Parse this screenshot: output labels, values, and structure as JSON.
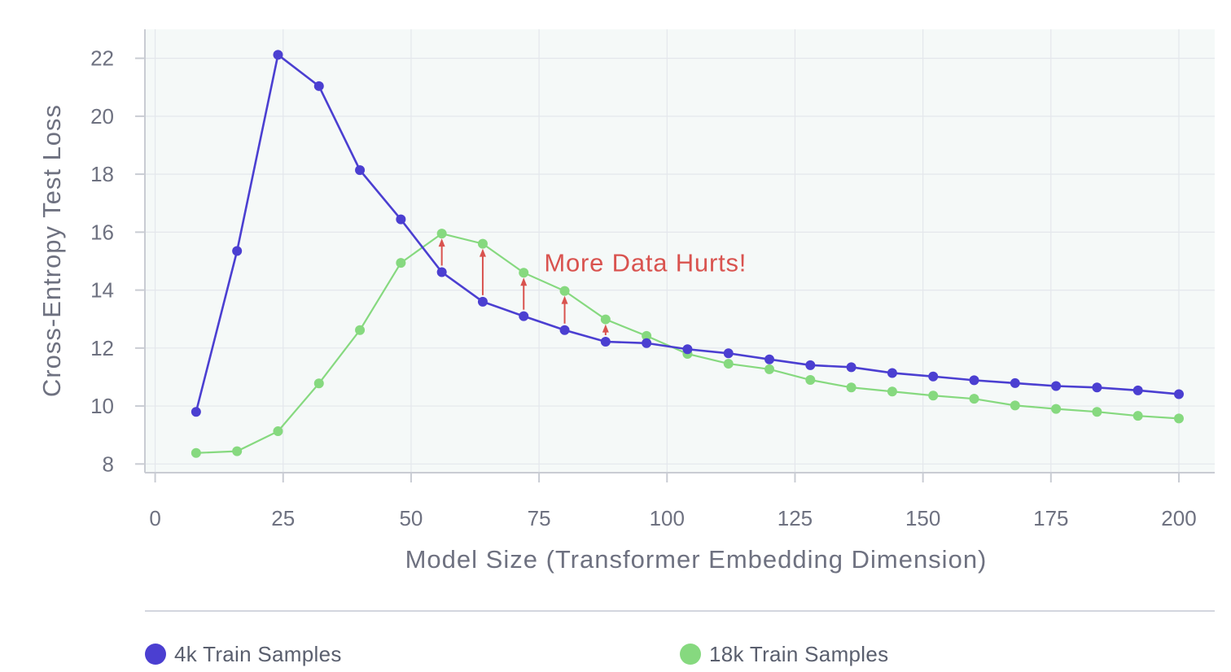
{
  "chart_data": {
    "type": "line",
    "title": "",
    "xlabel": "Model Size (Transformer Embedding Dimension)",
    "ylabel": "Cross-Entropy Test Loss",
    "xlim": [
      -2,
      207
    ],
    "ylim": [
      7.7,
      23.0
    ],
    "xticks": [
      0,
      25,
      50,
      75,
      100,
      125,
      150,
      175,
      200
    ],
    "yticks": [
      8,
      10,
      12,
      14,
      16,
      18,
      20,
      22
    ],
    "grid": true,
    "legend_position": "bottom",
    "annotation": {
      "text": "More Data Hurts!",
      "x": 76,
      "y": 14.95,
      "color": "#d9534f"
    },
    "arrows": [
      {
        "x": 56,
        "from": 14.62,
        "to": 15.95
      },
      {
        "x": 64,
        "from": 13.6,
        "to": 15.6
      },
      {
        "x": 72,
        "from": 13.1,
        "to": 14.6
      },
      {
        "x": 80,
        "from": 12.62,
        "to": 13.97
      },
      {
        "x": 88,
        "from": 12.22,
        "to": 12.99
      }
    ],
    "series": [
      {
        "name": "4k Train Samples",
        "color": "#4b3fd1",
        "x": [
          8,
          16,
          24,
          32,
          40,
          48,
          56,
          64,
          72,
          80,
          88,
          96,
          104,
          112,
          120,
          128,
          136,
          144,
          152,
          160,
          168,
          176,
          184,
          192,
          200
        ],
        "y": [
          9.8,
          15.35,
          22.12,
          21.04,
          18.14,
          16.44,
          14.62,
          13.6,
          13.1,
          12.62,
          12.22,
          12.17,
          11.96,
          11.82,
          11.61,
          11.41,
          11.34,
          11.14,
          11.02,
          10.89,
          10.79,
          10.69,
          10.64,
          10.54,
          10.41
        ]
      },
      {
        "name": "18k Train Samples",
        "color": "#86d97f",
        "x": [
          8,
          16,
          24,
          32,
          40,
          48,
          56,
          64,
          72,
          80,
          88,
          96,
          104,
          112,
          120,
          128,
          136,
          144,
          152,
          160,
          168,
          176,
          184,
          192,
          200
        ],
        "y": [
          8.38,
          8.44,
          9.13,
          10.78,
          12.62,
          14.94,
          15.95,
          15.6,
          14.6,
          13.97,
          12.99,
          12.42,
          11.8,
          11.46,
          11.27,
          10.9,
          10.64,
          10.5,
          10.36,
          10.25,
          10.02,
          9.9,
          9.8,
          9.66,
          9.57
        ]
      }
    ]
  },
  "legend": {
    "items": [
      {
        "label": "4k Train Samples",
        "color": "#4b3fd1"
      },
      {
        "label": "18k Train Samples",
        "color": "#86d97f"
      }
    ]
  }
}
